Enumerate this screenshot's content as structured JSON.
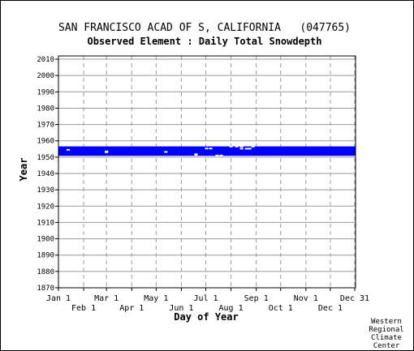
{
  "chart_data": {
    "type": "heatmap",
    "title": "SAN FRANCISCO ACAD OF S, CALIFORNIA   (047765)",
    "subtitle": "Observed Element : Daily Total Snowdepth",
    "xlabel": "Day of Year",
    "ylabel": "Year",
    "xlim": [
      1,
      366
    ],
    "ylim": [
      1870,
      2012
    ],
    "y_ticks": [
      1870,
      1880,
      1890,
      1900,
      1910,
      1920,
      1930,
      1940,
      1950,
      1960,
      1970,
      1980,
      1990,
      2000,
      2010
    ],
    "x_ticks_top": [
      {
        "label": "Jan 1",
        "day": 1
      },
      {
        "label": "Mar 1",
        "day": 60
      },
      {
        "label": "May 1",
        "day": 121
      },
      {
        "label": "Jul 1",
        "day": 182
      },
      {
        "label": "Sep 1",
        "day": 244
      },
      {
        "label": "Nov 1",
        "day": 305
      },
      {
        "label": "Dec 31",
        "day": 365
      }
    ],
    "x_ticks_bottom": [
      {
        "label": "Feb 1",
        "day": 32
      },
      {
        "label": "Apr 1",
        "day": 91
      },
      {
        "label": "Jun 1",
        "day": 152
      },
      {
        "label": "Aug 1",
        "day": 213
      },
      {
        "label": "Oct 1",
        "day": 274
      },
      {
        "label": "Dec 1",
        "day": 335
      }
    ],
    "grid": true,
    "color": "#0000ff",
    "observed_periods": [
      {
        "start_year": 1950.8,
        "end_year": 1956.6,
        "start_day": 1,
        "end_day": 366
      }
    ],
    "missing_marks": [
      {
        "year": 1954.5,
        "day": 13
      },
      {
        "year": 1953.5,
        "day": 60
      },
      {
        "year": 1953.0,
        "day": 60
      },
      {
        "year": 1953.2,
        "day": 133
      },
      {
        "year": 1951.8,
        "day": 170
      },
      {
        "year": 1951.4,
        "day": 170
      },
      {
        "year": 1955.3,
        "day": 183
      },
      {
        "year": 1955.3,
        "day": 188
      },
      {
        "year": 1951.0,
        "day": 196
      },
      {
        "year": 1951.0,
        "day": 201
      },
      {
        "year": 1956.5,
        "day": 213
      },
      {
        "year": 1956.5,
        "day": 220
      },
      {
        "year": 1956.5,
        "day": 226
      },
      {
        "year": 1955.2,
        "day": 226
      },
      {
        "year": 1955.2,
        "day": 232
      },
      {
        "year": 1956.5,
        "day": 240
      },
      {
        "year": 1955.2,
        "day": 236
      }
    ]
  },
  "footer": {
    "credit_lines": [
      "Western",
      "Regional",
      "Climate",
      "Center"
    ]
  }
}
